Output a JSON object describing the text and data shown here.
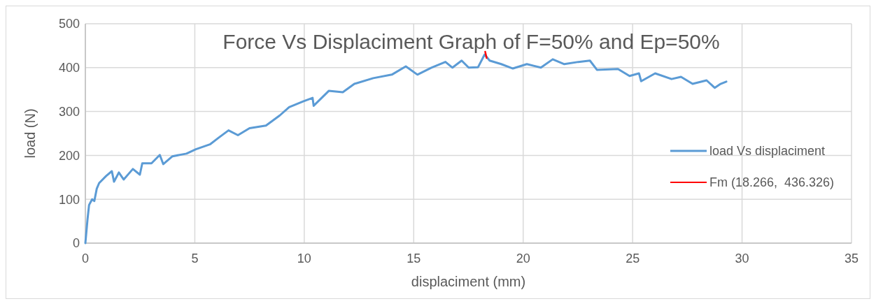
{
  "chart_data": {
    "type": "line",
    "title": "Force Vs Displaciment Graph of F=50% and Ep=50%",
    "xlabel": "displaciment (mm)",
    "ylabel": "load (N)",
    "xlim": [
      0,
      35
    ],
    "xticks": [
      0,
      5,
      10,
      15,
      20,
      25,
      30,
      35
    ],
    "ylim": [
      0,
      500
    ],
    "yticks": [
      0,
      100,
      200,
      300,
      400,
      500
    ],
    "grid": true,
    "legend": "right",
    "series": [
      {
        "name": "load Vs displaciment",
        "color": "#5b9bd5",
        "x": [
          0,
          0.1,
          0.17,
          0.31,
          0.41,
          0.52,
          0.63,
          0.95,
          1.21,
          1.31,
          1.53,
          1.75,
          2.17,
          2.49,
          2.6,
          3.02,
          3.4,
          3.56,
          3.98,
          4.62,
          5.05,
          5.69,
          6.11,
          6.54,
          6.97,
          7.5,
          8.25,
          8.88,
          9.31,
          9.95,
          10.38,
          10.43,
          11.12,
          11.76,
          12.29,
          13.15,
          14.0,
          14.64,
          15.17,
          15.81,
          16.45,
          16.77,
          17.19,
          17.51,
          17.94,
          18.24,
          18.47,
          19.0,
          19.53,
          20.17,
          20.81,
          21.35,
          21.88,
          22.52,
          23.05,
          23.37,
          24.33,
          24.86,
          25.29,
          25.39,
          26.03,
          26.78,
          27.21,
          27.74,
          28.38,
          28.75,
          29.02,
          29.28
        ],
        "values": [
          0,
          55,
          87,
          100,
          96,
          124,
          137,
          153,
          164,
          140,
          161,
          145,
          169,
          156,
          182,
          182,
          201,
          180,
          198,
          204,
          214,
          225,
          241,
          257,
          246,
          262,
          268,
          291,
          310,
          323,
          331,
          313,
          347,
          344,
          363,
          376,
          384,
          403,
          384,
          400,
          413,
          400,
          416,
          400,
          401,
          430,
          416,
          408,
          398,
          408,
          400,
          419,
          408,
          413,
          416,
          395,
          397,
          381,
          387,
          369,
          387,
          374,
          379,
          363,
          371,
          354,
          363,
          368
        ]
      },
      {
        "name": "Fm (18.266,  436.326)",
        "color": "#ff0000",
        "x": [
          18.266,
          18.33
        ],
        "values": [
          436.326,
          422
        ]
      }
    ]
  }
}
